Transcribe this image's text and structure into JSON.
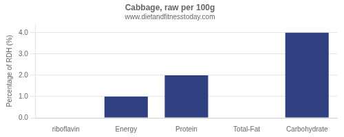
{
  "chart_data": {
    "type": "bar",
    "title": "Cabbage, raw per 100g",
    "subtitle": "www.dietandfitnesstoday.com",
    "categories": [
      "riboflavin",
      "Energy",
      "Protein",
      "Total-Fat",
      "Carbohydrate"
    ],
    "values": [
      0.0,
      1.0,
      2.0,
      0.0,
      4.0
    ],
    "color": "#2e4080",
    "ylabel": "Percentage of RDH (%)",
    "ylim": [
      0,
      4.4
    ],
    "yticks": [
      {
        "value": 0,
        "label": "0.0"
      },
      {
        "value": 1,
        "label": "1.0"
      },
      {
        "value": 2,
        "label": "2.0"
      },
      {
        "value": 3,
        "label": "3.0"
      },
      {
        "value": 4,
        "label": "4.0"
      }
    ],
    "grid": true
  }
}
